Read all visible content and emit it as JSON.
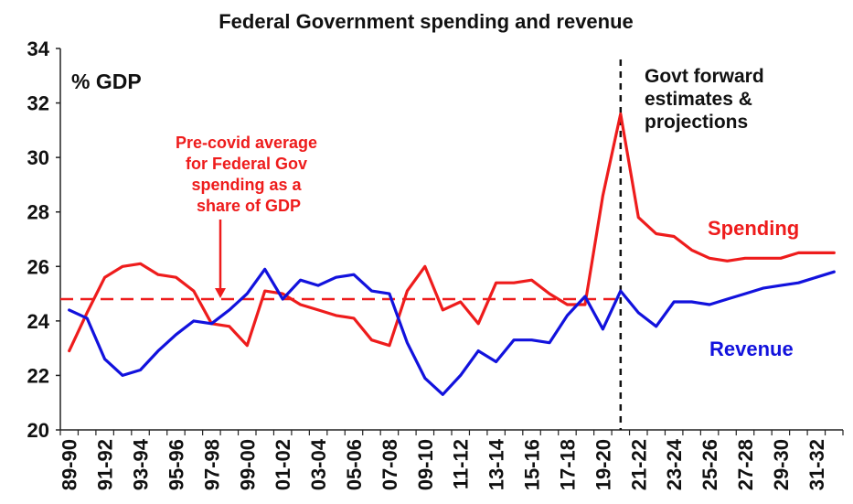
{
  "chart_data": {
    "type": "line",
    "title": "Federal Government spending and revenue",
    "unit_label": "% GDP",
    "ylim": [
      20,
      34
    ],
    "yticks": [
      20,
      22,
      24,
      26,
      28,
      30,
      32,
      34
    ],
    "grid": false,
    "categories": [
      "89-90",
      "90-91",
      "91-92",
      "92-93",
      "93-94",
      "94-95",
      "95-96",
      "96-97",
      "97-98",
      "98-99",
      "99-00",
      "00-01",
      "01-02",
      "02-03",
      "03-04",
      "04-05",
      "05-06",
      "06-07",
      "07-08",
      "08-09",
      "09-10",
      "10-11",
      "11-12",
      "12-13",
      "13-14",
      "14-15",
      "15-16",
      "16-17",
      "17-18",
      "18-19",
      "19-20",
      "20-21",
      "21-22",
      "22-23",
      "23-24",
      "24-25",
      "25-26",
      "26-27",
      "27-28",
      "28-29",
      "29-30",
      "30-31",
      "31-32",
      "32-33"
    ],
    "series": [
      {
        "name": "Spending",
        "color": "#ee1c1c",
        "values": [
          22.9,
          24.3,
          25.6,
          26.0,
          26.1,
          25.7,
          25.6,
          25.1,
          23.9,
          23.8,
          23.1,
          25.1,
          25.0,
          24.6,
          24.4,
          24.2,
          24.1,
          23.3,
          23.1,
          25.1,
          26.0,
          24.4,
          24.7,
          23.9,
          25.4,
          25.4,
          25.5,
          25.0,
          24.6,
          24.6,
          28.6,
          31.6,
          27.8,
          27.2,
          27.1,
          26.6,
          26.3,
          26.2,
          26.3,
          26.3,
          26.3,
          26.5,
          26.5,
          26.5
        ]
      },
      {
        "name": "Revenue",
        "color": "#1212dd",
        "values": [
          24.4,
          24.1,
          22.6,
          22.0,
          22.2,
          22.9,
          23.5,
          24.0,
          23.9,
          24.4,
          25.0,
          25.9,
          24.8,
          25.5,
          25.3,
          25.6,
          25.7,
          25.1,
          25.0,
          23.2,
          21.9,
          21.3,
          22.0,
          22.9,
          22.5,
          23.3,
          23.3,
          23.2,
          24.2,
          24.9,
          23.7,
          25.1,
          24.3,
          23.8,
          24.7,
          24.7,
          24.6,
          24.8,
          25.0,
          25.2,
          25.3,
          25.4,
          25.6,
          25.8
        ]
      }
    ],
    "xtick_labels": [
      "89-90",
      "91-92",
      "93-94",
      "95-96",
      "97-98",
      "99-00",
      "01-02",
      "03-04",
      "05-06",
      "07-08",
      "09-10",
      "11-12",
      "13-14",
      "15-16",
      "17-18",
      "19-20",
      "21-22",
      "23-24",
      "25-26",
      "27-28",
      "29-30",
      "31-32"
    ],
    "reference_line": {
      "value": 24.8,
      "color": "#ee1c1c"
    },
    "forecast_divider_category": "20-21",
    "annotations": {
      "precovid_lines": [
        "Pre-covid average",
        "for Federal Gov",
        "spending as a",
        "share of GDP"
      ],
      "forecast_lines": [
        "Govt forward",
        "estimates &",
        "projections"
      ],
      "spending_label": "Spending",
      "revenue_label": "Revenue"
    }
  }
}
